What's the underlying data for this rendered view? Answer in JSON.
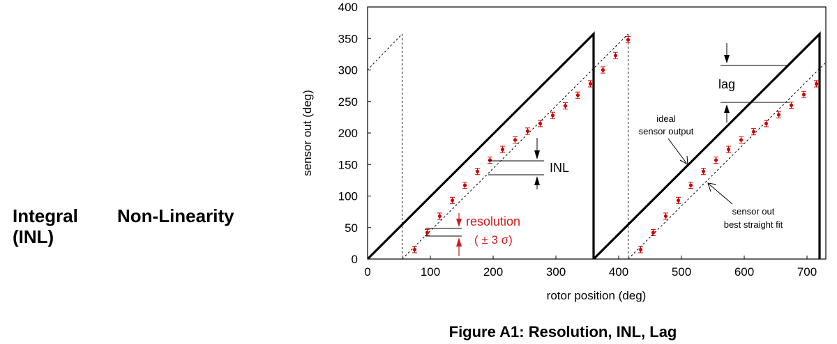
{
  "side_title": {
    "line1_a": "Integral",
    "line1_b": "Non-Linearity",
    "line2": "(INL)"
  },
  "figure_caption": "Figure A1: Resolution, INL, Lag",
  "chart_data": {
    "type": "line",
    "xlabel": "rotor position (deg)",
    "ylabel": "sensor out (deg)",
    "xlim": [
      0,
      730
    ],
    "ylim": [
      0,
      400
    ],
    "x_ticks": [
      "0",
      "100",
      "200",
      "300",
      "400",
      "500",
      "600",
      "700"
    ],
    "y_ticks": [
      "0",
      "50",
      "100",
      "150",
      "200",
      "250",
      "300",
      "350",
      "400"
    ],
    "grid": false,
    "colors": {
      "ideal": "#000000",
      "measured": "#cc0000",
      "fit": "#000000",
      "annotation_red": "#d11a1a"
    },
    "series": [
      {
        "style": "thick-solid",
        "points": [
          [
            0,
            0
          ],
          [
            360,
            357
          ],
          [
            360,
            0
          ],
          [
            720,
            357
          ],
          [
            720,
            0
          ]
        ]
      },
      {
        "style": "dotted",
        "segments": [
          [
            [
              -10,
              290
            ],
            [
              55,
              357
            ]
          ],
          [
            [
              55,
              0
            ],
            [
              415,
              357
            ]
          ],
          [
            [
              415,
              0
            ],
            [
              730,
              312
            ]
          ]
        ]
      },
      {
        "style": "points-with-error-bars",
        "points": [
          [
            75,
            15
          ],
          [
            95,
            42
          ],
          [
            115,
            68
          ],
          [
            135,
            93
          ],
          [
            155,
            117
          ],
          [
            175,
            139
          ],
          [
            195,
            157
          ],
          [
            215,
            174
          ],
          [
            235,
            189
          ],
          [
            255,
            203
          ],
          [
            275,
            215
          ],
          [
            295,
            228
          ],
          [
            315,
            243
          ],
          [
            335,
            260
          ],
          [
            355,
            278
          ],
          [
            375,
            300
          ],
          [
            395,
            323
          ],
          [
            415,
            348
          ],
          [
            435,
            15
          ],
          [
            455,
            42
          ],
          [
            475,
            68
          ],
          [
            495,
            93
          ],
          [
            515,
            117
          ],
          [
            535,
            139
          ],
          [
            555,
            157
          ],
          [
            575,
            174
          ],
          [
            595,
            189
          ],
          [
            615,
            202
          ],
          [
            635,
            215
          ],
          [
            655,
            229
          ],
          [
            675,
            244
          ],
          [
            695,
            261
          ],
          [
            715,
            278
          ]
        ],
        "err": 5
      }
    ],
    "annotations": {
      "inl": "INL",
      "resolution": "resolution",
      "sigma": "( ± 3 σ)",
      "lag": "lag",
      "ideal_line1": "ideal",
      "ideal_line2": "sensor output",
      "fit_line1": "sensor out",
      "fit_line2": "best straight fit"
    }
  }
}
